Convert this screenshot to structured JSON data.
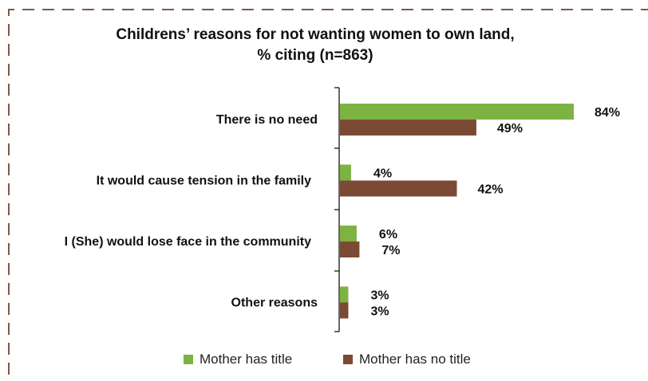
{
  "chart_data": {
    "type": "bar",
    "orientation": "horizontal",
    "title_line1": "Childrens’ reasons for not wanting women to own land,",
    "title_line2": "% citing (n=863)",
    "categories": [
      "There is no need",
      "It would cause tension in the family",
      "I (She) would lose face in the community",
      "Other reasons"
    ],
    "series": [
      {
        "name": "Mother has title",
        "color": "#7cb342",
        "values": [
          84,
          4,
          6,
          3
        ],
        "labels": [
          "84%",
          "4%",
          "6%",
          "3%"
        ]
      },
      {
        "name": "Mother has no title",
        "color": "#7b4a35",
        "values": [
          49,
          42,
          7,
          3
        ],
        "labels": [
          "49%",
          "42%",
          "7%",
          "3%"
        ]
      }
    ],
    "xlim": [
      0,
      84
    ],
    "grid": false,
    "legend_position": "bottom"
  },
  "colors": {
    "border_dash": "#7a5a48",
    "axis": "#333333"
  }
}
